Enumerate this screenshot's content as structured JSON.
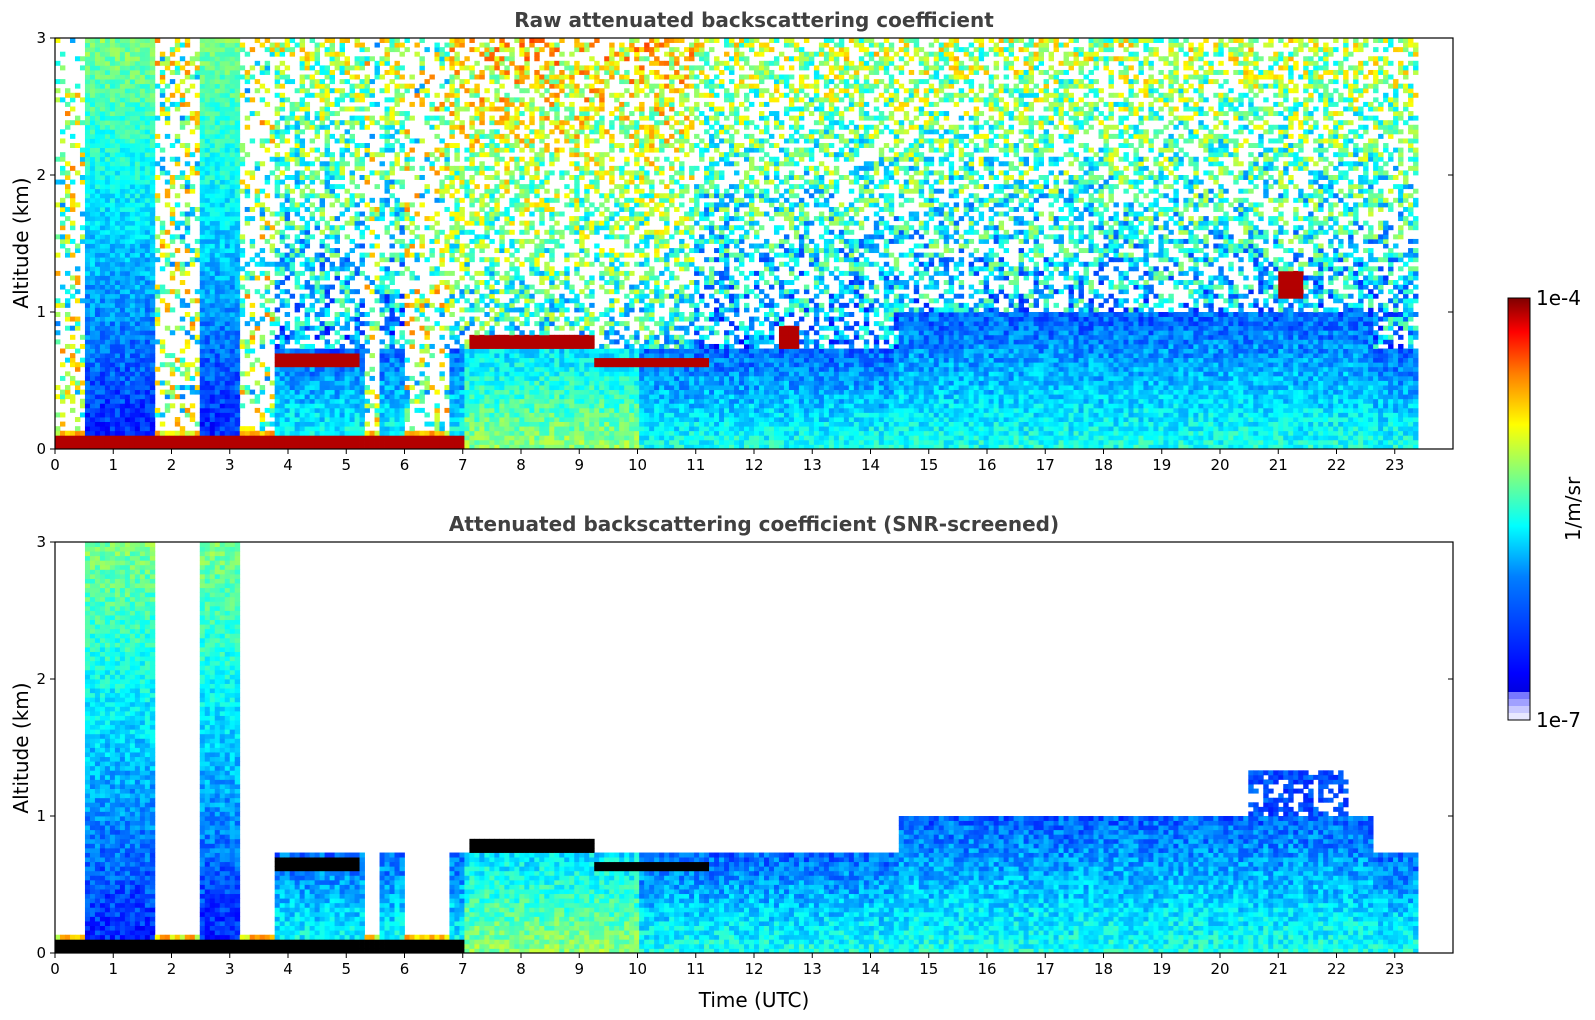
{
  "chart_data": [
    {
      "type": "heatmap",
      "title": "Raw attenuated backscattering coefficient",
      "xlabel": "",
      "ylabel": "Altitude (km)",
      "xlim": [
        0,
        24
      ],
      "ylim": [
        0,
        3
      ],
      "x_ticks": [
        0,
        1,
        2,
        3,
        4,
        5,
        6,
        7,
        8,
        9,
        10,
        11,
        12,
        13,
        14,
        15,
        16,
        17,
        18,
        19,
        20,
        21,
        22,
        23
      ],
      "y_ticks": [
        0,
        1,
        2,
        3
      ],
      "colorscale": "jet",
      "data_extent_hours": [
        0,
        23.4
      ],
      "features": [
        {
          "kind": "surface-layer",
          "start": 0,
          "end": 7,
          "top_km": 0.1
        },
        {
          "kind": "cloud",
          "start": 3.8,
          "end": 5.2,
          "base_km": 0.6,
          "top_km": 0.7
        },
        {
          "kind": "cloud",
          "start": 7.1,
          "end": 9.3,
          "base_km": 0.75,
          "top_km": 0.85
        },
        {
          "kind": "cloud",
          "start": 9.3,
          "end": 11.2,
          "base_km": 0.6,
          "top_km": 0.68
        },
        {
          "kind": "cloud",
          "start": 12.4,
          "end": 12.8,
          "base_km": 0.75,
          "top_km": 0.9
        },
        {
          "kind": "cloud",
          "start": 21.0,
          "end": 21.4,
          "base_km": 1.1,
          "top_km": 1.3
        }
      ]
    },
    {
      "type": "heatmap",
      "title": "Attenuated backscattering coefficient (SNR-screened)",
      "xlabel": "Time (UTC)",
      "ylabel": "Altitude (km)",
      "xlim": [
        0,
        24
      ],
      "ylim": [
        0,
        3
      ],
      "x_ticks": [
        0,
        1,
        2,
        3,
        4,
        5,
        6,
        7,
        8,
        9,
        10,
        11,
        12,
        13,
        14,
        15,
        16,
        17,
        18,
        19,
        20,
        21,
        22,
        23
      ],
      "y_ticks": [
        0,
        1,
        2,
        3
      ],
      "colorscale": "jet",
      "data_extent_hours": [
        0,
        23.4
      ],
      "saturated_color": "#000000",
      "features": [
        {
          "kind": "surface-layer",
          "start": 0,
          "end": 7,
          "top_km": 0.1
        },
        {
          "kind": "cloud",
          "start": 3.8,
          "end": 5.2,
          "base_km": 0.6,
          "top_km": 0.7
        },
        {
          "kind": "cloud",
          "start": 7.1,
          "end": 9.3,
          "base_km": 0.75,
          "top_km": 0.85
        },
        {
          "kind": "cloud",
          "start": 9.3,
          "end": 11.2,
          "base_km": 0.6,
          "top_km": 0.68
        },
        {
          "kind": "boundary-layer",
          "start": 14.5,
          "end": 22.6,
          "top_km": 1.0
        }
      ]
    }
  ],
  "colorbar": {
    "max_label": "1e-4",
    "min_label": "1e-7",
    "unit_label": "1/m/sr",
    "colors": [
      "#00007f",
      "#0000ff",
      "#007fff",
      "#00ffff",
      "#7fff7f",
      "#ffff00",
      "#ff7f00",
      "#ff0000",
      "#7f0000"
    ],
    "low_fade_colors": [
      "#e8e8ff",
      "#c8c8ff",
      "#a0a0ff",
      "#7878ff"
    ]
  }
}
